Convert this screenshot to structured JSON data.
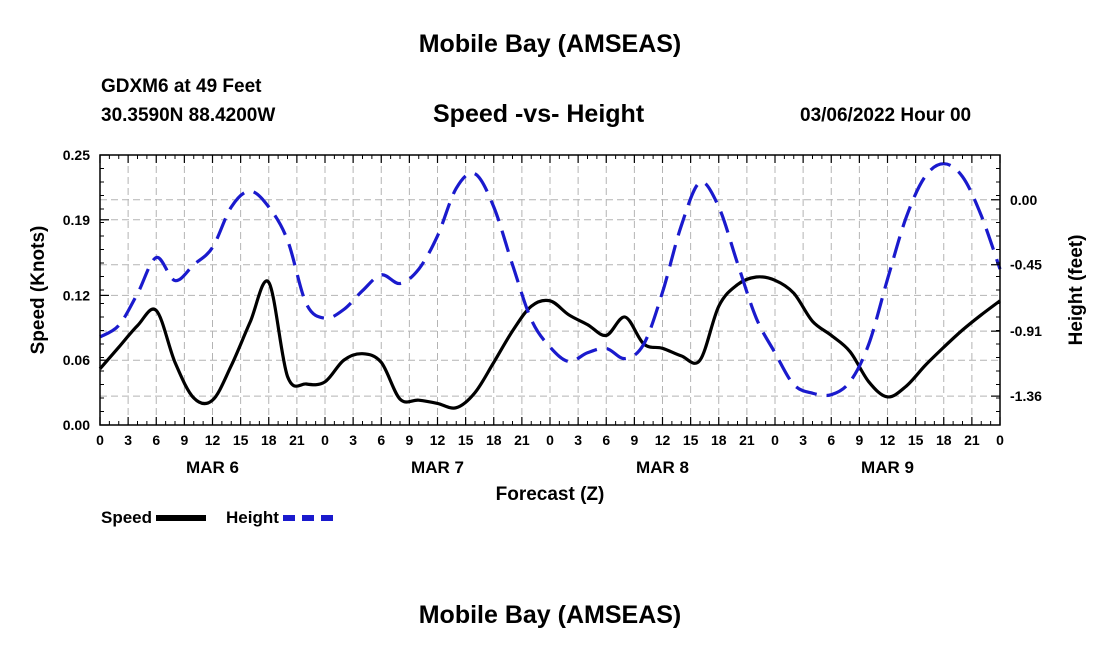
{
  "chart_data": {
    "type": "line",
    "title": "Mobile Bay (AMSEAS)",
    "subtitle": "Speed -vs- Height",
    "station": "GDXM6 at 49 Feet",
    "coords": "30.3590N  88.4200W",
    "datetime": "03/06/2022 Hour 00",
    "footer_title": "Mobile Bay (AMSEAS)",
    "xlabel": "Forecast (Z)",
    "ylabel_left": "Speed (Knots)",
    "ylabel_right": "Height (feet)",
    "x_range_hours": [
      0,
      96
    ],
    "x_tick_hours": [
      0,
      3,
      6,
      9,
      12,
      15,
      18,
      21,
      24,
      27,
      30,
      33,
      36,
      39,
      42,
      45,
      48,
      51,
      54,
      57,
      60,
      63,
      66,
      69,
      72,
      75,
      78,
      81,
      84,
      87,
      90,
      93,
      96
    ],
    "x_tick_labels": [
      "0",
      "3",
      "6",
      "9",
      "12",
      "15",
      "18",
      "21",
      "0",
      "3",
      "6",
      "9",
      "12",
      "15",
      "18",
      "21",
      "0",
      "3",
      "6",
      "9",
      "12",
      "15",
      "18",
      "21",
      "0",
      "3",
      "6",
      "9",
      "12",
      "15",
      "18",
      "21",
      "0"
    ],
    "day_labels": [
      {
        "hour": 12,
        "label": "MAR 6"
      },
      {
        "hour": 36,
        "label": "MAR 7"
      },
      {
        "hour": 60,
        "label": "MAR 8"
      },
      {
        "hour": 84,
        "label": "MAR 9"
      }
    ],
    "ylim_left": [
      0,
      0.25
    ],
    "yticks_left": [
      0.0,
      0.06,
      0.12,
      0.19,
      0.25
    ],
    "yticks_left_labels": [
      "0.00",
      "0.06",
      "0.12",
      "0.19",
      "0.25"
    ],
    "ylim_right": [
      -1.56,
      0.31
    ],
    "yticks_right": [
      0.0,
      -0.45,
      -0.91,
      -1.36
    ],
    "yticks_right_labels": [
      "0.00",
      "-0.45",
      "-0.91",
      "-1.36"
    ],
    "grid": true,
    "series": [
      {
        "name": "Speed",
        "axis": "left",
        "color": "#000000",
        "style": "solid",
        "hours": [
          0,
          2,
          4,
          6,
          8,
          10,
          12,
          14,
          16,
          18,
          20,
          22,
          24,
          26,
          28,
          30,
          32,
          34,
          36,
          38,
          40,
          42,
          44,
          46,
          48,
          50,
          52,
          54,
          56,
          58,
          60,
          62,
          64,
          66,
          68,
          70,
          72,
          74,
          76,
          78,
          80,
          82,
          84,
          86,
          88,
          90,
          92,
          94,
          96
        ],
        "values": [
          0.052,
          0.072,
          0.092,
          0.106,
          0.058,
          0.025,
          0.023,
          0.055,
          0.095,
          0.132,
          0.045,
          0.038,
          0.04,
          0.06,
          0.066,
          0.058,
          0.024,
          0.023,
          0.02,
          0.016,
          0.03,
          0.058,
          0.087,
          0.11,
          0.115,
          0.102,
          0.093,
          0.083,
          0.1,
          0.075,
          0.071,
          0.064,
          0.06,
          0.11,
          0.13,
          0.137,
          0.134,
          0.122,
          0.096,
          0.083,
          0.068,
          0.04,
          0.026,
          0.036,
          0.055,
          0.072,
          0.088,
          0.102,
          0.115
        ]
      },
      {
        "name": "Height",
        "axis": "right",
        "color": "#1a1acd",
        "style": "dashed",
        "hours": [
          0,
          2,
          4,
          6,
          8,
          10,
          12,
          14,
          16,
          18,
          20,
          22,
          24,
          26,
          28,
          30,
          32,
          34,
          36,
          38,
          40,
          42,
          44,
          46,
          48,
          50,
          52,
          54,
          56,
          58,
          60,
          62,
          64,
          66,
          68,
          70,
          72,
          74,
          76,
          78,
          80,
          82,
          84,
          86,
          88,
          90,
          92,
          94,
          96
        ],
        "values": [
          -0.95,
          -0.87,
          -0.65,
          -0.4,
          -0.56,
          -0.45,
          -0.33,
          -0.05,
          0.06,
          -0.05,
          -0.28,
          -0.72,
          -0.82,
          -0.76,
          -0.63,
          -0.52,
          -0.58,
          -0.48,
          -0.25,
          0.08,
          0.18,
          -0.05,
          -0.45,
          -0.83,
          -1.02,
          -1.12,
          -1.06,
          -1.03,
          -1.1,
          -1.0,
          -0.64,
          -0.18,
          0.12,
          -0.05,
          -0.44,
          -0.82,
          -1.06,
          -1.28,
          -1.34,
          -1.35,
          -1.26,
          -1.0,
          -0.55,
          -0.12,
          0.16,
          0.25,
          0.16,
          -0.11,
          -0.48
        ]
      }
    ],
    "legend": [
      {
        "label": "Speed"
      },
      {
        "label": "Height"
      }
    ]
  }
}
